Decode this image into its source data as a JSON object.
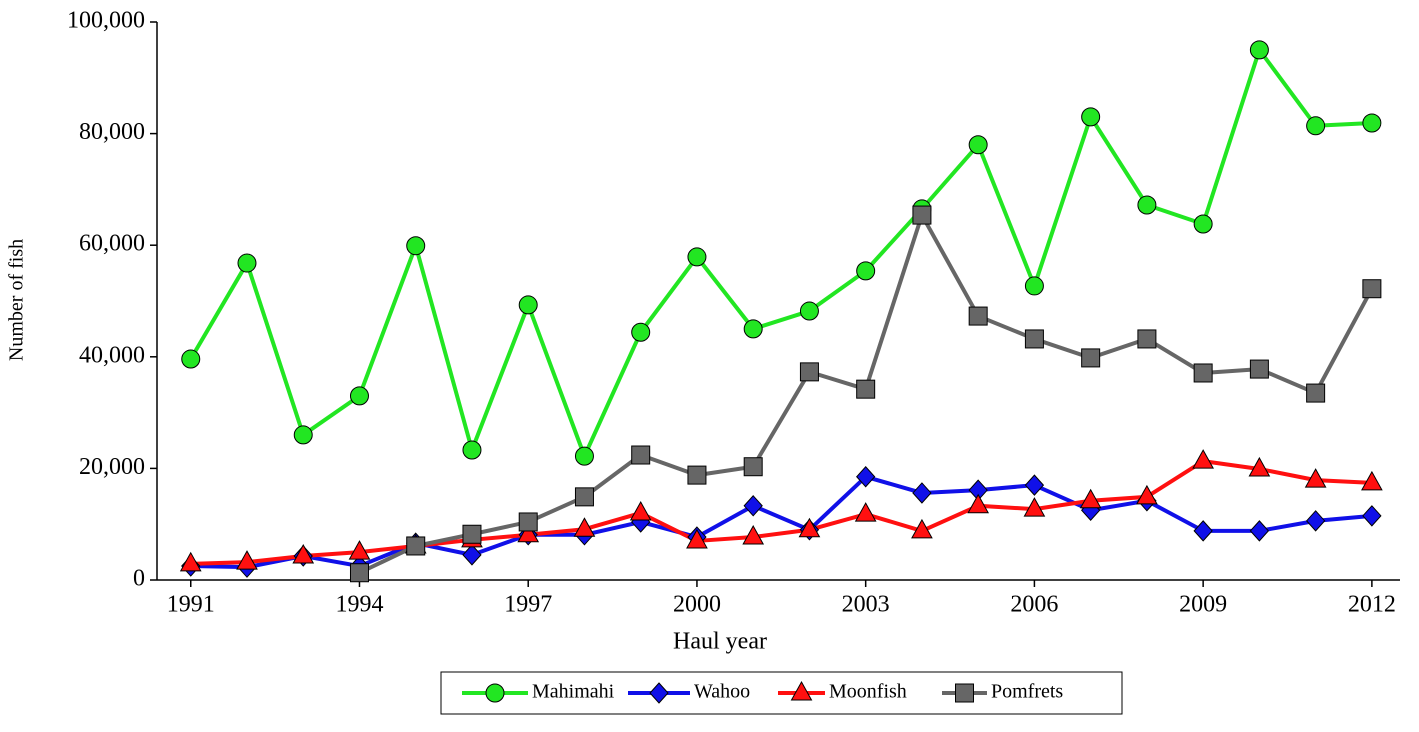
{
  "chart_data": {
    "type": "line",
    "xlabel": "Haul year",
    "ylabel": "Number of fish",
    "x": [
      1991,
      1992,
      1993,
      1994,
      1995,
      1996,
      1997,
      1998,
      1999,
      2000,
      2001,
      2002,
      2003,
      2004,
      2005,
      2006,
      2007,
      2008,
      2009,
      2010,
      2011,
      2012
    ],
    "series": [
      {
        "name": "Mahimahi",
        "color": "#22e622",
        "marker": "circle",
        "values": [
          39600,
          56800,
          26000,
          33000,
          59900,
          23300,
          49300,
          22200,
          44400,
          57900,
          45000,
          48200,
          55400,
          66500,
          78000,
          52700,
          83000,
          67200,
          63800,
          95000,
          81400,
          81900
        ]
      },
      {
        "name": "Wahoo",
        "color": "#1010e8",
        "marker": "diamond",
        "values": [
          2500,
          2300,
          4300,
          2500,
          6600,
          4500,
          8100,
          8100,
          10400,
          7700,
          13300,
          9000,
          18500,
          15600,
          16100,
          17000,
          12500,
          14200,
          8800,
          8800,
          10600,
          11500
        ]
      },
      {
        "name": "Moonfish",
        "color": "#ff1010",
        "marker": "triangle",
        "values": [
          2900,
          3200,
          4300,
          5000,
          6100,
          7200,
          8100,
          9100,
          12000,
          7000,
          7700,
          9000,
          11800,
          8800,
          13300,
          12700,
          14200,
          14900,
          21300,
          19900,
          17900,
          17400
        ]
      },
      {
        "name": "Pomfrets",
        "color": "#666666",
        "marker": "square",
        "values": [
          null,
          null,
          null,
          1300,
          6100,
          8200,
          10400,
          14900,
          22400,
          18800,
          20300,
          37300,
          34200,
          65400,
          47300,
          43200,
          39800,
          43200,
          37100,
          37800,
          33500,
          52200
        ]
      }
    ],
    "xlim": [
      1990.4,
      2012.5
    ],
    "xticks": [
      1991,
      1994,
      1997,
      2000,
      2003,
      2006,
      2009,
      2012
    ],
    "ylim": [
      0,
      100000
    ],
    "yticks": [
      0,
      {
        "value": 20000,
        "label": "20,000"
      },
      {
        "value": 40000,
        "label": "40,000"
      },
      {
        "value": 60000,
        "label": "60,000"
      },
      {
        "value": 80000,
        "label": "80,000"
      },
      {
        "value": 100000,
        "label": "100,000"
      }
    ],
    "legend": "bottom"
  }
}
